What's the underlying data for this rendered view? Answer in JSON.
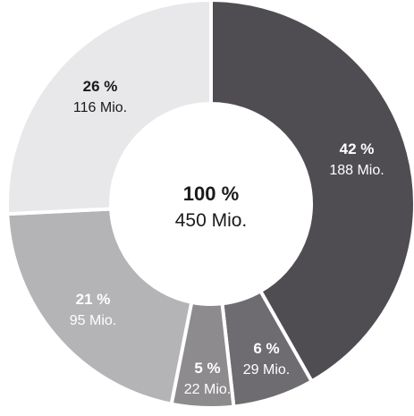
{
  "chart_data": {
    "type": "donut",
    "segments": [
      {
        "percent": "42 %",
        "amount": "188 Mio.",
        "value": 188,
        "color": "#4f4d52",
        "text_color": "#ffffff"
      },
      {
        "percent": "6 %",
        "amount": "29 Mio.",
        "value": 29,
        "color": "#6e6c70",
        "text_color": "#ffffff"
      },
      {
        "percent": "5 %",
        "amount": "22 Mio.",
        "value": 22,
        "color": "#8d8b8e",
        "text_color": "#ffffff"
      },
      {
        "percent": "21 %",
        "amount": "95 Mio.",
        "value": 95,
        "color": "#b4b3b6",
        "text_color": "#ffffff"
      },
      {
        "percent": "26 %",
        "amount": "116 Mio.",
        "value": 116,
        "color": "#e8e7e9",
        "text_color": "#1a1a1a"
      }
    ],
    "total": {
      "percent": "100 %",
      "amount": "450 Mio."
    }
  }
}
